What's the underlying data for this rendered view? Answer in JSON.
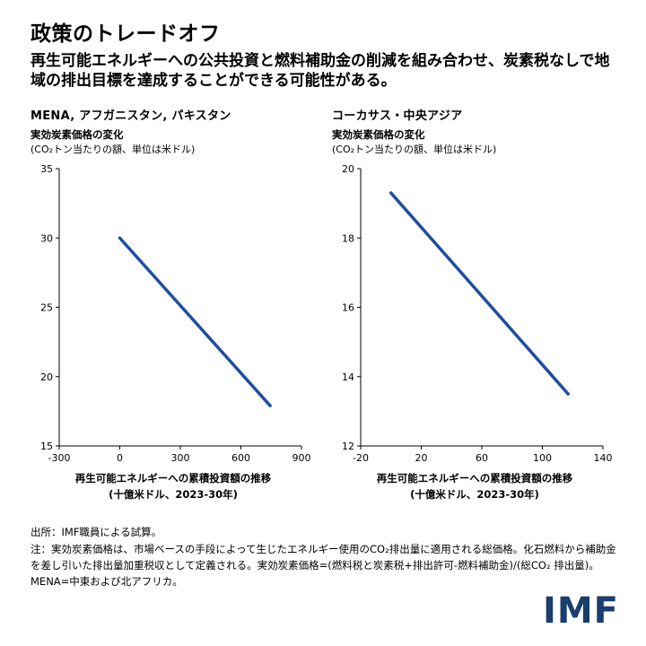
{
  "header": {
    "title": "政策のトレードオフ",
    "subtitle": "再生可能エネルギーへの公共投資と燃料補助金の削減を組み合わせ、炭素税なしで地域の排出目標を達成することができる可能性がある。"
  },
  "charts": [
    {
      "title": "MENA, アフガニスタン, パキスタン",
      "ylabel_line1": "実効炭素価格の変化",
      "ylabel_line2": "(CO₂トン当たりの額、単位は米ドル)",
      "xcaption_line1": "再生可能エネルギーへの累積投資額の推移",
      "xcaption_line2": "(十億米ドル、2023-30年)"
    },
    {
      "title": "コーカサス・中央アジア",
      "ylabel_line1": "実効炭素価格の変化",
      "ylabel_line2": "(CO₂トン当たりの額、単位は米ドル)",
      "xcaption_line1": "再生可能エネルギーへの累積投資額の推移",
      "xcaption_line2": "(十億米ドル、2023-30年)"
    }
  ],
  "chart_data": [
    {
      "type": "line",
      "title": "MENA, アフガニスタン, パキスタン",
      "ylabel": "実効炭素価格の変化 (CO₂トン当たりの額、単位は米ドル)",
      "xlabel": "再生可能エネルギーへの累積投資額の推移 (十億米ドル、2023-30年)",
      "xlim": [
        -300,
        900
      ],
      "ylim": [
        15,
        35
      ],
      "xticks": [
        -300,
        0,
        300,
        600,
        900
      ],
      "yticks": [
        15,
        20,
        25,
        30,
        35
      ],
      "grid": false,
      "legend": "none",
      "series": [
        {
          "name": "実効炭素価格",
          "points": [
            [
              0,
              30
            ],
            [
              745,
              17.9
            ]
          ]
        }
      ]
    },
    {
      "type": "line",
      "title": "コーカサス・中央アジア",
      "ylabel": "実効炭素価格の変化 (CO₂トン当たりの額、単位は米ドル)",
      "xlabel": "再生可能エネルギーへの累積投資額の推移 (十億米ドル、2023-30年)",
      "xlim": [
        -20,
        140
      ],
      "ylim": [
        12,
        20
      ],
      "xticks": [
        -20,
        20,
        60,
        100,
        140
      ],
      "yticks": [
        12,
        14,
        16,
        18,
        20
      ],
      "grid": false,
      "legend": "none",
      "series": [
        {
          "name": "実効炭素価格",
          "points": [
            [
              0,
              19.3
            ],
            [
              117,
              13.5
            ]
          ]
        }
      ]
    }
  ],
  "footer": {
    "source": "出所：IMF職員による試算。",
    "note": "注：実効炭素価格は、市場ベースの手段によって生じたエネルギー使用のCO₂排出量に適用される総価格。化石燃料から補助金を差し引いた排出量加重税収として定義される。実効炭素価格=(燃料税と炭素税+排出許可-燃料補助金)/(総CO₂ 排出量)。MENA=中東および北アフリカ。",
    "logo": "IMF"
  },
  "colors": {
    "line": "#1f4e9e",
    "logo": "#1a3e6e",
    "axis": "#000000"
  }
}
